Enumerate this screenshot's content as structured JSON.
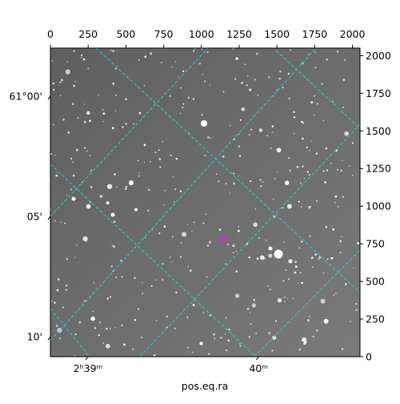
{
  "chart_data": {
    "type": "image",
    "xlabel": "pos.eq.ra",
    "xlim": [
      0,
      2050
    ],
    "ylim": [
      0,
      2050
    ],
    "xticks": [
      0,
      250,
      500,
      750,
      1000,
      1250,
      1500,
      1750,
      2000
    ],
    "yticks": [
      0,
      250,
      500,
      750,
      1000,
      1250,
      1500,
      1750,
      2000
    ],
    "y_world_ticks": [
      {
        "value": 1730,
        "label": "61°00'"
      },
      {
        "value": 932,
        "label": "05'"
      },
      {
        "value": 133,
        "label": "10'"
      }
    ],
    "x_world_ticks": [
      {
        "value": 249,
        "label": "2ʰ39ᵐ"
      },
      {
        "value": 1379,
        "label": "40ᵐ"
      }
    ],
    "grid": true,
    "grid_color": "#22d3d3",
    "marker": {
      "x": 1139,
      "y": 788,
      "color": "#e01ee0"
    }
  }
}
